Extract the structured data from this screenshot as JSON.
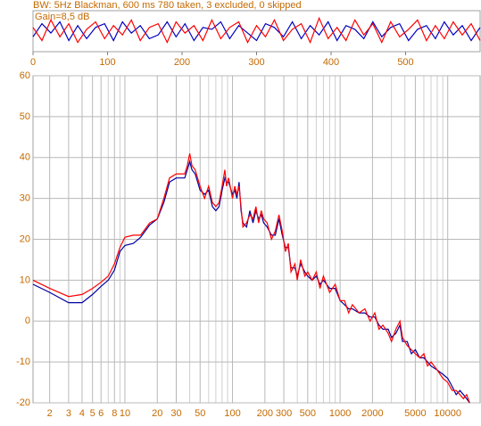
{
  "chart_data": [
    {
      "type": "line",
      "title": "BW: 5Hz Blackman, 600 ms 780 taken, 3 excluded, 0 skipped",
      "annotation": "Gain=8,5 dB",
      "xlim": [
        0,
        600
      ],
      "xticks": [
        0,
        100,
        200,
        300,
        400,
        500
      ],
      "ylim": [
        -1,
        1
      ],
      "grid": false,
      "x": [
        0,
        12,
        24,
        36,
        48,
        60,
        72,
        84,
        96,
        108,
        120,
        132,
        144,
        156,
        168,
        180,
        192,
        204,
        216,
        228,
        240,
        252,
        264,
        276,
        288,
        300,
        312,
        324,
        336,
        348,
        360,
        372,
        384,
        396,
        408,
        420,
        432,
        444,
        456,
        468,
        480,
        492,
        504,
        516,
        528,
        540,
        552,
        564,
        576,
        588,
        600
      ],
      "series": [
        {
          "color": "#0000c0",
          "values": [
            -0.3,
            0.4,
            -0.1,
            0.5,
            -0.5,
            0.3,
            -0.4,
            0.2,
            0.4,
            -0.5,
            0.5,
            -0.1,
            0.3,
            -0.4,
            -0.2,
            0.5,
            -0.3,
            0.4,
            -0.5,
            0.2,
            0.1,
            0.5,
            -0.4,
            0.3,
            -0.1,
            -0.5,
            0.4,
            0.2,
            -0.3,
            0.5,
            -0.4,
            0.3,
            -0.2,
            0.5,
            -0.5,
            0.3,
            0.1,
            -0.4,
            0.5,
            -0.3,
            0.2,
            0.4,
            -0.5,
            0.1,
            0.3,
            -0.4,
            0.5,
            -0.2,
            0.3,
            -0.5,
            0.2
          ]
        },
        {
          "color": "#ff0000",
          "values": [
            0.2,
            -0.5,
            0.6,
            -0.3,
            0.4,
            -0.6,
            0.1,
            0.5,
            -0.4,
            0.3,
            -0.2,
            0.6,
            -0.5,
            0.2,
            0.4,
            -0.6,
            0.5,
            -0.1,
            0.3,
            -0.5,
            0.6,
            -0.4,
            0.2,
            0.5,
            -0.6,
            0.3,
            -0.3,
            0.6,
            -0.5,
            0.1,
            0.4,
            -0.6,
            0.7,
            -0.4,
            0.2,
            -0.5,
            0.6,
            -0.2,
            0.4,
            -0.6,
            0.5,
            -0.3,
            0.1,
            0.6,
            -0.5,
            0.3,
            -0.4,
            0.5,
            -0.2,
            0.4,
            -0.5
          ]
        }
      ]
    },
    {
      "type": "line",
      "log_x": true,
      "grid": true,
      "xlim": [
        1.4,
        20000
      ],
      "ylim": [
        -20,
        60
      ],
      "xticks": [
        2,
        3,
        4,
        5,
        6,
        8,
        10,
        20,
        30,
        50,
        100,
        200,
        300,
        500,
        1000,
        2000,
        5000,
        10000
      ],
      "xminor": [
        7,
        9,
        40,
        60,
        70,
        80,
        90,
        400,
        600,
        700,
        800,
        900,
        3000,
        4000,
        6000,
        7000,
        8000,
        9000
      ],
      "yticks": [
        60,
        50,
        40,
        30,
        20,
        10,
        0,
        -10,
        -20
      ],
      "x": [
        1.4,
        2,
        3,
        4,
        5,
        6,
        7,
        8,
        9,
        10,
        12,
        14,
        17,
        20,
        23,
        26,
        30,
        33,
        36,
        38,
        40,
        42,
        45,
        50,
        55,
        60,
        65,
        70,
        75,
        80,
        85,
        88,
        92,
        100,
        105,
        110,
        115,
        120,
        125,
        135,
        145,
        155,
        165,
        175,
        185,
        195,
        210,
        230,
        250,
        270,
        290,
        310,
        330,
        350,
        380,
        400,
        430,
        470,
        500,
        550,
        600,
        650,
        700,
        800,
        900,
        1000,
        1100,
        1200,
        1300,
        1500,
        1700,
        1900,
        2100,
        2300,
        2500,
        2800,
        3000,
        3300,
        3600,
        3800,
        4200,
        4600,
        5000,
        5500,
        6000,
        6500,
        7000,
        8000,
        9000,
        10000,
        11000,
        12000,
        13000,
        14000,
        15000,
        16000
      ],
      "series": [
        {
          "color": "#0000a0",
          "values": [
            9,
            7,
            4.5,
            4.5,
            6.5,
            8.5,
            10,
            12.5,
            17,
            18.5,
            19,
            20.5,
            23.5,
            25,
            29,
            34,
            35,
            35,
            35,
            37,
            39,
            37,
            36,
            32,
            31,
            32,
            28,
            27,
            28,
            32,
            35,
            34,
            34,
            31,
            32,
            30,
            34,
            27,
            24,
            23,
            27,
            24,
            27,
            25,
            26,
            24,
            23,
            21,
            21,
            25,
            21,
            18,
            18,
            13,
            13,
            11,
            14,
            12,
            11,
            10,
            11,
            9,
            10,
            8,
            8,
            5,
            4,
            3,
            3,
            2,
            2,
            1,
            1,
            -1,
            -2,
            -2,
            -4,
            -3,
            -1,
            -5,
            -5,
            -8,
            -7,
            -9,
            -9,
            -10,
            -11,
            -12,
            -13,
            -14,
            -16,
            -18,
            -17,
            -18,
            -19,
            -20
          ]
        },
        {
          "color": "#ff0000",
          "values": [
            10,
            8,
            6,
            6.5,
            8,
            9.5,
            11,
            14,
            18,
            20.5,
            21,
            21,
            24,
            25,
            30,
            35,
            36,
            36,
            36,
            38,
            41,
            38,
            37,
            33,
            30,
            33,
            29,
            28,
            29,
            33,
            37,
            33,
            35,
            30,
            33,
            31,
            33,
            28,
            23,
            24,
            26,
            25,
            28,
            24,
            27,
            25,
            24,
            20,
            22,
            26,
            22,
            17,
            19,
            12,
            14,
            10,
            15,
            11,
            12,
            10,
            12,
            8,
            11,
            7,
            9,
            5,
            5,
            2,
            4,
            2,
            3,
            0,
            2,
            -2,
            -1,
            -3,
            -5,
            -2,
            0,
            -4,
            -6,
            -7,
            -8,
            -9,
            -8,
            -11,
            -10,
            -12,
            -14,
            -15,
            -17,
            -17,
            -18,
            -19,
            -18,
            -20
          ]
        }
      ]
    }
  ]
}
